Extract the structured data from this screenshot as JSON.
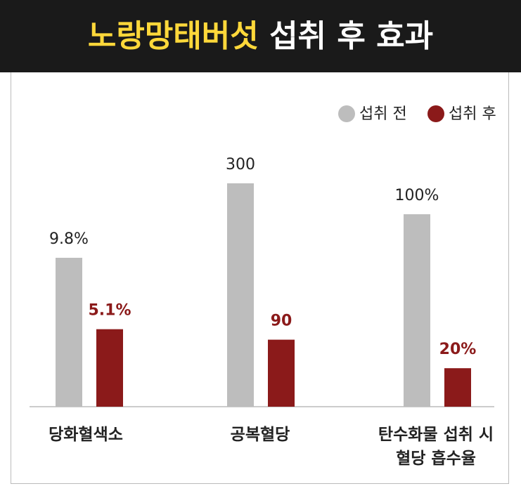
{
  "chart_data": {
    "type": "bar",
    "title": [
      "노랑망태버섯",
      "섭취 후 효과"
    ],
    "categories": [
      "당화혈색소",
      "공복혈당",
      "탄수화물 섭취 시 혈당 흡수율"
    ],
    "series": [
      {
        "name": "섭취 전",
        "color": "#bdbdbd",
        "values": [
          9.8,
          300,
          100
        ],
        "value_labels": [
          "9.8%",
          "300",
          "100%"
        ]
      },
      {
        "name": "섭취 후",
        "color": "#8b1a1a",
        "values": [
          5.1,
          90,
          20
        ],
        "value_labels": [
          "5.1%",
          "90",
          "20%"
        ]
      }
    ],
    "legend": "top-right"
  }
}
